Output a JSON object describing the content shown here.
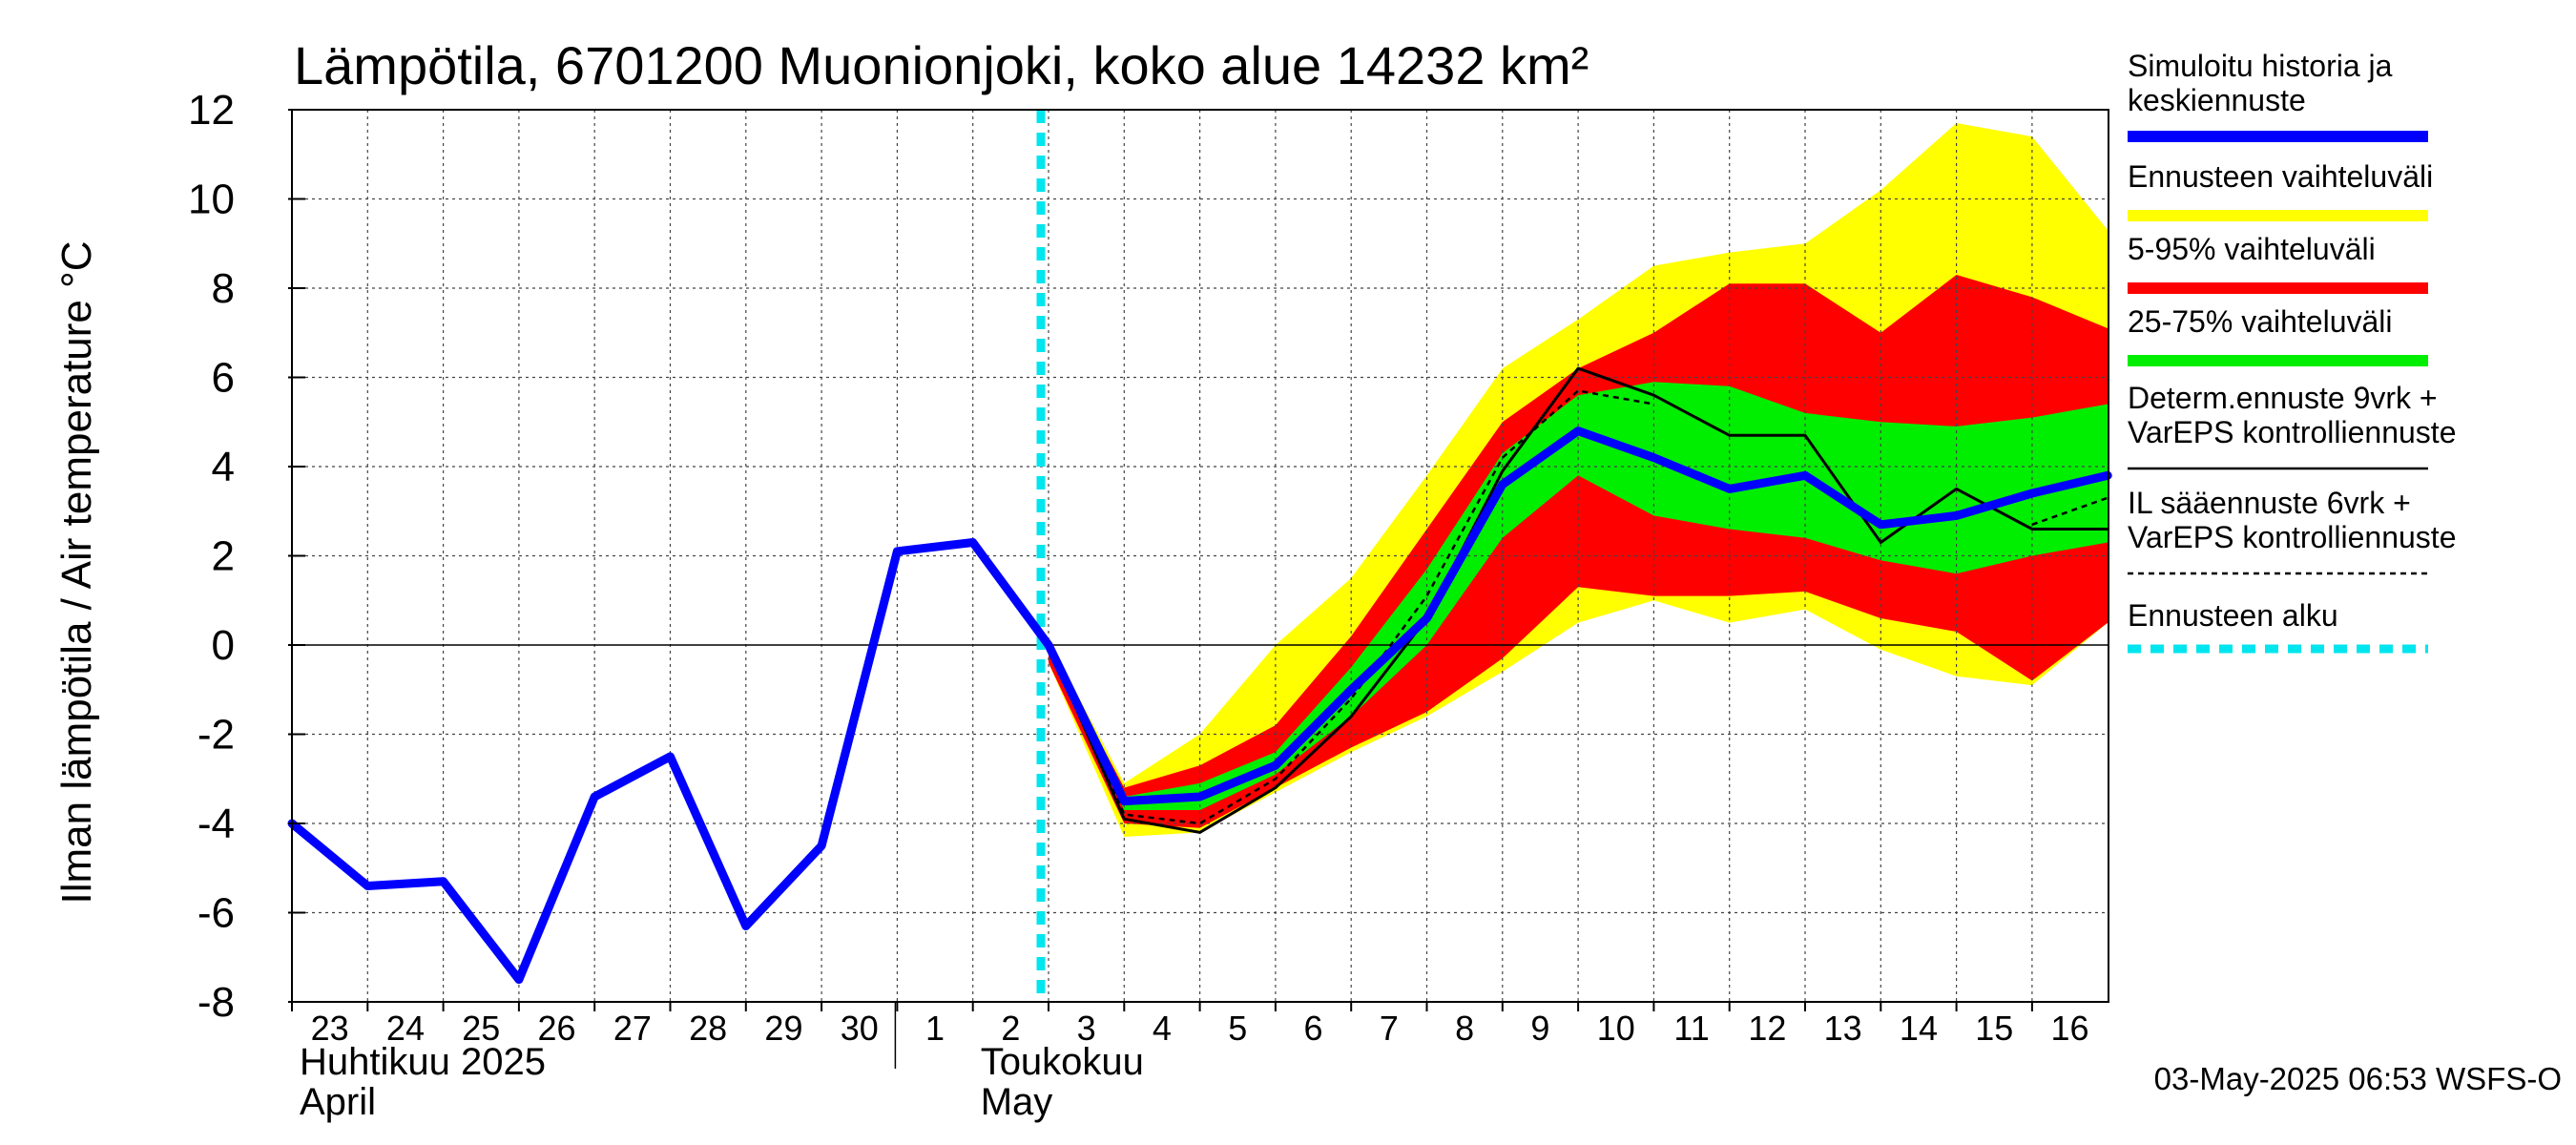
{
  "chart_data": {
    "type": "line",
    "title": "Lämpötila, 6701200 Muonionjoki, koko alue 14232 km²",
    "ylabel": "Ilman lämpötila / Air temperature   °C",
    "ylim": [
      -8,
      12
    ],
    "yticks": [
      -8,
      -6,
      -4,
      -2,
      0,
      2,
      4,
      6,
      8,
      10,
      12
    ],
    "grid": true,
    "x_start_day": "2025-04-23",
    "day_labels": [
      "23",
      "24",
      "25",
      "26",
      "27",
      "28",
      "29",
      "30",
      "1",
      "2",
      "3",
      "4",
      "5",
      "6",
      "7",
      "8",
      "9",
      "10",
      "11",
      "12",
      "13",
      "14",
      "15",
      "16"
    ],
    "months": [
      {
        "fi": "Huhtikuu  2025",
        "en": "April"
      },
      {
        "fi": "Toukokuu",
        "en": "May"
      }
    ],
    "forecast_start_day": 10.0,
    "history": {
      "x": [
        0,
        1,
        2,
        3,
        4,
        5,
        6,
        7,
        8,
        9,
        10
      ],
      "y": [
        -4.0,
        -5.4,
        -5.3,
        -7.5,
        -3.4,
        -2.5,
        -6.3,
        -4.5,
        2.1,
        2.3,
        0.0
      ]
    },
    "forecast_x": [
      10,
      11,
      12,
      13,
      14,
      15,
      16,
      17,
      18,
      19,
      20,
      21,
      22,
      23,
      24
    ],
    "yellow_band": {
      "upper": [
        0.1,
        -3.1,
        -2.0,
        0.0,
        1.5,
        3.8,
        6.2,
        7.3,
        8.5,
        8.8,
        9.0,
        10.2,
        11.7,
        11.4,
        9.3
      ],
      "lower": [
        -0.4,
        -4.3,
        -4.2,
        -3.3,
        -2.4,
        -1.6,
        -0.6,
        0.5,
        1.0,
        0.5,
        0.8,
        -0.1,
        -0.7,
        -0.9,
        0.5
      ]
    },
    "red_band": {
      "upper": [
        0.0,
        -3.2,
        -2.7,
        -1.8,
        0.2,
        2.6,
        5.0,
        6.2,
        7.0,
        8.1,
        8.1,
        7.0,
        8.3,
        7.8,
        7.1
      ],
      "lower": [
        -0.4,
        -4.0,
        -4.1,
        -3.2,
        -2.3,
        -1.5,
        -0.3,
        1.3,
        1.1,
        1.1,
        1.2,
        0.6,
        0.3,
        -0.8,
        0.5
      ]
    },
    "green_band": {
      "upper": [
        0.0,
        -3.4,
        -3.1,
        -2.4,
        -0.5,
        1.7,
        4.3,
        5.6,
        5.9,
        5.8,
        5.2,
        5.0,
        4.9,
        5.1,
        5.4
      ],
      "lower": [
        -0.2,
        -3.7,
        -3.7,
        -2.9,
        -1.6,
        0.0,
        2.4,
        3.8,
        2.9,
        2.6,
        2.4,
        1.9,
        1.6,
        2.0,
        2.3
      ]
    },
    "median": [
      0.0,
      -3.5,
      -3.4,
      -2.7,
      -1.0,
      0.6,
      3.6,
      4.8,
      4.2,
      3.5,
      3.8,
      2.7,
      2.9,
      3.4,
      3.8
    ],
    "determ_9vrk": [
      0.0,
      -3.9,
      -4.2,
      -3.2,
      -1.6,
      0.6,
      3.9,
      6.2,
      5.6,
      4.7,
      4.7,
      2.3,
      3.5,
      2.6,
      2.6
    ],
    "il_6vrk": [
      0.0,
      -3.8,
      -4.0,
      -3.0,
      -1.2,
      1.1,
      4.2,
      5.7,
      5.4,
      null,
      null,
      null,
      null,
      2.7,
      3.3
    ]
  },
  "legend": [
    {
      "lines": [
        "Simuloitu historia ja",
        "keskiennuste"
      ],
      "color": "#0000ff",
      "style": "thick"
    },
    {
      "lines": [
        "Ennusteen vaihteluväli"
      ],
      "color": "#ffff00",
      "style": "thick"
    },
    {
      "lines": [
        "5-95% vaihteluväli"
      ],
      "color": "#ff0000",
      "style": "thick"
    },
    {
      "lines": [
        "25-75% vaihteluväli"
      ],
      "color": "#00ee00",
      "style": "thick"
    },
    {
      "lines": [
        "Determ.ennuste 9vrk  +",
        "VarEPS kontrolliennuste"
      ],
      "color": "#000000",
      "style": "thin"
    },
    {
      "lines": [
        "IL sääennuste 6vrk  +",
        "  VarEPS kontrolliennuste"
      ],
      "color": "#000000",
      "style": "dashed"
    },
    {
      "lines": [
        "Ennusteen alku"
      ],
      "color": "#00e5ee",
      "style": "cyan-dashed"
    }
  ],
  "footer": "03-May-2025 06:53 WSFS-O",
  "colors": {
    "yellow": "#ffff00",
    "red": "#ff0000",
    "green": "#00ee00",
    "blue": "#0000ff",
    "cyan": "#00e5ee"
  }
}
